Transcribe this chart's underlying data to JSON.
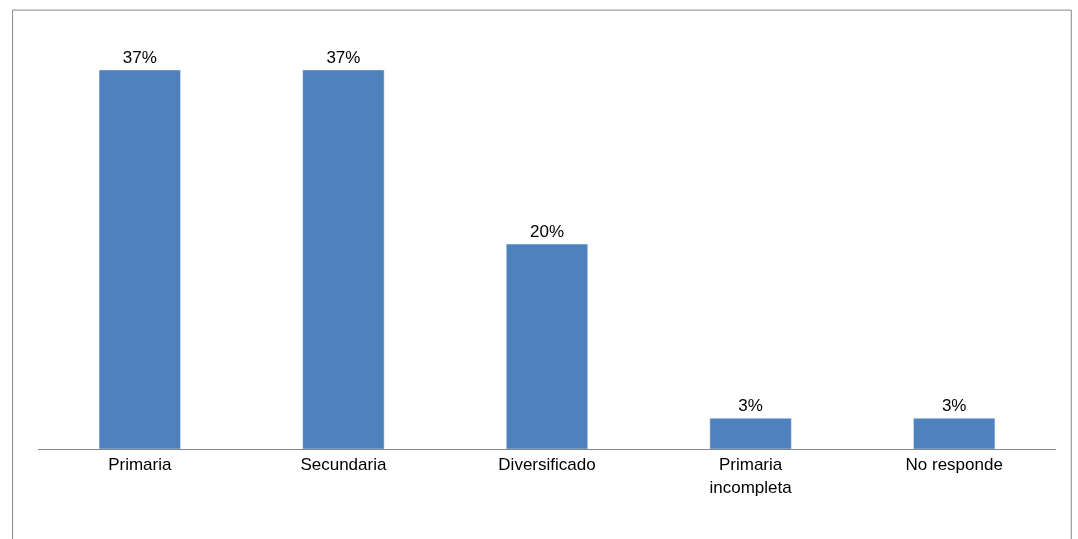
{
  "chart_data": {
    "type": "bar",
    "categories": [
      "Primaria",
      "Secundaria",
      "Diversificado",
      "Primaria incompleta",
      "No responde"
    ],
    "values": [
      37,
      37,
      20,
      3,
      3
    ],
    "value_labels": [
      "37%",
      "37%",
      "20%",
      "3%",
      "3%"
    ],
    "color": "#4f81bd"
  }
}
